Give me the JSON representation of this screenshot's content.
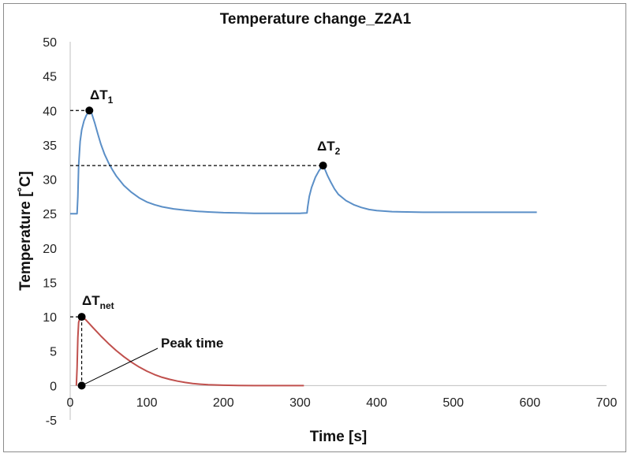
{
  "chart_data": {
    "type": "line",
    "title": "Temperature change_Z2A1",
    "xlabel": "Time [s]",
    "ylabel": "Temperature [˚C]",
    "xlim": [
      0,
      700
    ],
    "ylim": [
      -5,
      50
    ],
    "x_ticks": [
      0,
      100,
      200,
      300,
      400,
      500,
      600,
      700
    ],
    "y_ticks": [
      -5,
      0,
      5,
      10,
      15,
      20,
      25,
      30,
      35,
      40,
      45,
      50
    ],
    "grid": false,
    "legend": "none",
    "colors": {
      "measured": "#5b8fc7",
      "net": "#c0504d",
      "markers": "#000000"
    },
    "series": [
      {
        "x": [
          0,
          9,
          10,
          11,
          13,
          15,
          18,
          21,
          25,
          28,
          32,
          36,
          40,
          45,
          50,
          55,
          60,
          70,
          80,
          90,
          100,
          110,
          120,
          135,
          150,
          165,
          180,
          200,
          220,
          240,
          260,
          280,
          300,
          309,
          310,
          312,
          315,
          320,
          325,
          330,
          333,
          336,
          340,
          345,
          350,
          360,
          370,
          380,
          390,
          400,
          420,
          440,
          460,
          480,
          500,
          520,
          540,
          560,
          580,
          600,
          609
        ],
        "y": [
          25,
          25,
          27.5,
          32,
          35.5,
          37.2,
          38.5,
          39.3,
          40,
          39.6,
          38.2,
          36.6,
          35.1,
          33.6,
          32.4,
          31.4,
          30.5,
          29.1,
          28.1,
          27.3,
          26.7,
          26.3,
          26.0,
          25.7,
          25.5,
          25.35,
          25.25,
          25.15,
          25.1,
          25.05,
          25.05,
          25.05,
          25.05,
          25.1,
          26,
          27.5,
          28.8,
          30.3,
          31.3,
          32,
          31.3,
          30.5,
          29.6,
          28.6,
          27.8,
          26.9,
          26.3,
          25.9,
          25.6,
          25.45,
          25.3,
          25.25,
          25.2,
          25.2,
          25.2,
          25.2,
          25.2,
          25.2,
          25.2,
          25.2,
          25.2
        ]
      },
      {
        "x": [
          8,
          9,
          10,
          11,
          13,
          15,
          20,
          25,
          30,
          40,
          50,
          60,
          70,
          80,
          90,
          100,
          110,
          120,
          130,
          140,
          150,
          160,
          170,
          180,
          200,
          220,
          240,
          260,
          280,
          300,
          305
        ],
        "y": [
          0,
          2.5,
          7,
          9.2,
          9.9,
          10,
          9.6,
          9.0,
          8.4,
          7.2,
          6.1,
          5.1,
          4.2,
          3.4,
          2.7,
          2.1,
          1.6,
          1.2,
          0.9,
          0.65,
          0.45,
          0.3,
          0.2,
          0.12,
          0.05,
          0.02,
          0,
          0,
          0,
          0,
          0
        ]
      }
    ],
    "markers": [
      {
        "x": 25,
        "y": 40,
        "label_main": "ΔT",
        "label_sub": "1"
      },
      {
        "x": 330,
        "y": 32,
        "label_main": "ΔT",
        "label_sub": "2"
      },
      {
        "x": 15,
        "y": 10,
        "label_main": "ΔT",
        "label_sub": "net"
      },
      {
        "x": 15,
        "y": 0,
        "label_main": "Peak time",
        "label_sub": ""
      }
    ]
  }
}
